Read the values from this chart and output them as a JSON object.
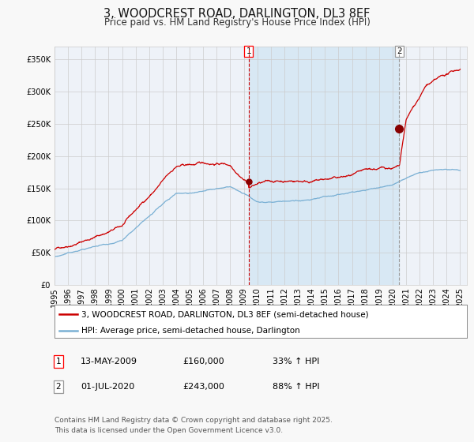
{
  "title": "3, WOODCREST ROAD, DARLINGTON, DL3 8EF",
  "subtitle": "Price paid vs. HM Land Registry's House Price Index (HPI)",
  "bg_color": "#f8f8f8",
  "plot_bg_color": "#eef2f8",
  "grid_color": "#cccccc",
  "red_line_color": "#cc0000",
  "blue_line_color": "#7ab0d4",
  "highlight_bg": "#d8e8f4",
  "vline1_color": "#cc0000",
  "vline2_color": "#999999",
  "marker_color": "#880000",
  "ylim": [
    0,
    370000
  ],
  "yticks": [
    0,
    50000,
    100000,
    150000,
    200000,
    250000,
    300000,
    350000
  ],
  "ytick_labels": [
    "£0",
    "£50K",
    "£100K",
    "£150K",
    "£200K",
    "£250K",
    "£300K",
    "£350K"
  ],
  "year_start": 1995,
  "year_end": 2025,
  "sale1_year": 2009.36,
  "sale1_price": 160000,
  "sale1_label": "1",
  "sale2_year": 2020.5,
  "sale2_price": 243000,
  "sale2_label": "2",
  "legend_line1": "3, WOODCREST ROAD, DARLINGTON, DL3 8EF (semi-detached house)",
  "legend_line2": "HPI: Average price, semi-detached house, Darlington",
  "table_row1": [
    "1",
    "13-MAY-2009",
    "£160,000",
    "33% ↑ HPI"
  ],
  "table_row2": [
    "2",
    "01-JUL-2020",
    "£243,000",
    "88% ↑ HPI"
  ],
  "footnote": "Contains HM Land Registry data © Crown copyright and database right 2025.\nThis data is licensed under the Open Government Licence v3.0.",
  "title_fontsize": 10.5,
  "subtitle_fontsize": 8.5,
  "tick_fontsize": 7,
  "legend_fontsize": 7.5,
  "table_fontsize": 8,
  "footnote_fontsize": 6.5
}
